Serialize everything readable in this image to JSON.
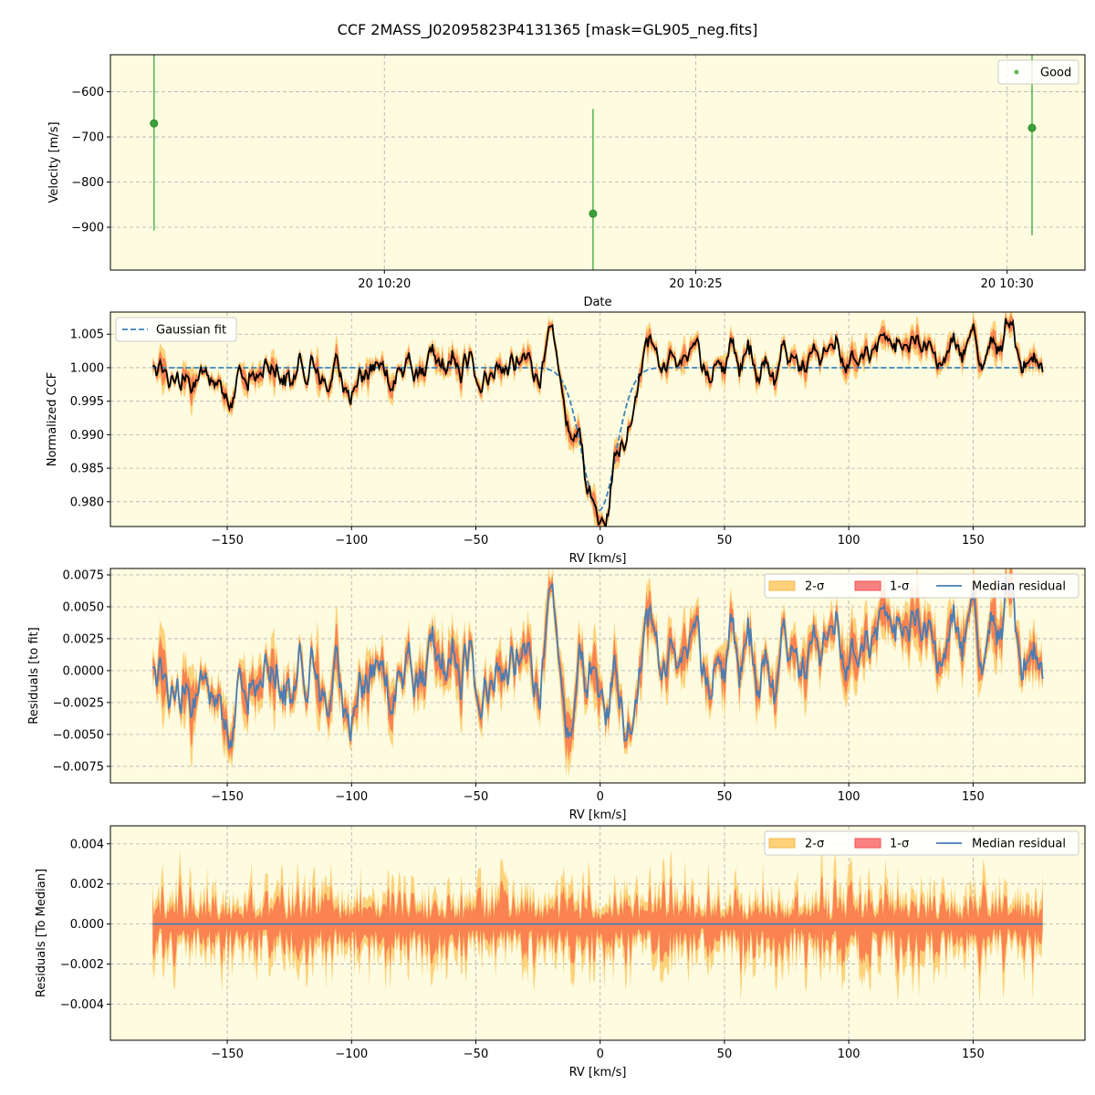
{
  "figure": {
    "title": "CCF 2MASS_J02095823P4131365 [mask=GL905_neg.fits]",
    "background_color": "#ffffff",
    "panel_color": "#fdfbe0",
    "grid_color": "#b0b0b0"
  },
  "chart_data": [
    {
      "type": "scatter",
      "xlabel": "Date",
      "ylabel": "Velocity [m/s]",
      "x_ticks": [
        "20 10:20",
        "20 10:25",
        "20 10:30"
      ],
      "x_tick_minutes": [
        20,
        25,
        30
      ],
      "xlim_minutes": [
        15.6,
        31.25
      ],
      "ylim": [
        -995,
        -518
      ],
      "y_ticks": [
        -600,
        -700,
        -800,
        -900
      ],
      "y_tick_labels": [
        "−600",
        "−700",
        "−800",
        "−900"
      ],
      "grid": true,
      "legend": {
        "position": "top-right",
        "entries": [
          {
            "name": "Good",
            "color": "#2ca02c"
          }
        ]
      },
      "series": [
        {
          "name": "Good",
          "color": "#2ca02c",
          "points": [
            {
              "t": 16.3,
              "y": -670,
              "yerr": 237
            },
            {
              "t": 23.35,
              "y": -870,
              "yerr": 232
            },
            {
              "t": 30.4,
              "y": -680,
              "yerr": 238
            }
          ]
        }
      ]
    },
    {
      "type": "line",
      "xlabel": "RV [km/s]",
      "ylabel": "Normalized CCF",
      "xlim": [
        -197,
        195
      ],
      "ylim": [
        0.9763,
        1.0083
      ],
      "x_ticks": [
        -150,
        -100,
        -50,
        0,
        50,
        100,
        150
      ],
      "x_tick_labels": [
        "−150",
        "−100",
        "−50",
        "0",
        "50",
        "100",
        "150"
      ],
      "y_ticks": [
        0.98,
        0.985,
        0.99,
        0.995,
        1.0,
        1.005
      ],
      "y_tick_labels": [
        "0.980",
        "0.985",
        "0.990",
        "0.995",
        "1.000",
        "1.005"
      ],
      "grid": true,
      "legend": {
        "position": "top-left",
        "entries": [
          {
            "name": "Gaussian fit",
            "color": "#3b84b8",
            "style": "dashed"
          }
        ]
      },
      "gaussian_fit": {
        "baseline": 1.0,
        "depth": 0.0213,
        "center": -0.5,
        "sigma": 6.8
      },
      "rv_range": [
        -180,
        178
      ]
    },
    {
      "type": "area",
      "xlabel": "RV [km/s]",
      "ylabel": "Residuals [to fit]",
      "xlim": [
        -197,
        195
      ],
      "ylim": [
        -0.0088,
        0.008
      ],
      "x_ticks": [
        -150,
        -100,
        -50,
        0,
        50,
        100,
        150
      ],
      "x_tick_labels": [
        "−150",
        "−100",
        "−50",
        "0",
        "50",
        "100",
        "150"
      ],
      "y_ticks": [
        -0.0075,
        -0.005,
        -0.0025,
        0.0,
        0.0025,
        0.005,
        0.0075
      ],
      "y_tick_labels": [
        "−0.0075",
        "−0.0050",
        "−0.0025",
        "0.0000",
        "0.0025",
        "0.0050",
        "0.0075"
      ],
      "grid": true,
      "legend": {
        "position": "top-right",
        "entries": [
          {
            "name": "2-σ",
            "color": "#fdd27a"
          },
          {
            "name": "1-σ",
            "color": "#f98181"
          },
          {
            "name": "Median residual",
            "color": "#4a7db3"
          }
        ]
      }
    },
    {
      "type": "area",
      "xlabel": "RV [km/s]",
      "ylabel": "Residuals [To Median]",
      "xlim": [
        -197,
        195
      ],
      "ylim": [
        -0.0058,
        0.0049
      ],
      "x_ticks": [
        -150,
        -100,
        -50,
        0,
        50,
        100,
        150
      ],
      "x_tick_labels": [
        "−150",
        "−100",
        "−50",
        "0",
        "50",
        "100",
        "150"
      ],
      "y_ticks": [
        -0.004,
        -0.002,
        0.0,
        0.002,
        0.004
      ],
      "y_tick_labels": [
        "−0.004",
        "−0.002",
        "0.000",
        "0.002",
        "0.004"
      ],
      "grid": true,
      "legend": {
        "position": "top-right",
        "entries": [
          {
            "name": "2-σ",
            "color": "#fdd27a"
          },
          {
            "name": "1-σ",
            "color": "#f98181"
          },
          {
            "name": "Median residual",
            "color": "#4a7db3"
          }
        ]
      }
    }
  ]
}
